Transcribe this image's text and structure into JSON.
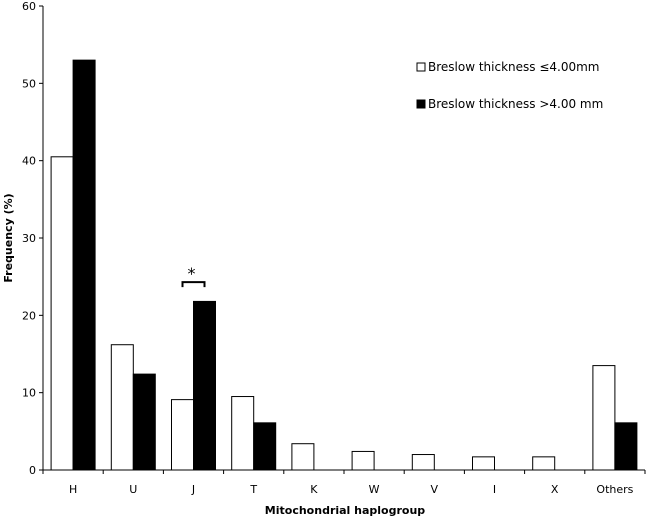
{
  "chart_data": {
    "type": "bar",
    "categories": [
      "H",
      "U",
      "J",
      "T",
      "K",
      "W",
      "V",
      "I",
      "X",
      "Others"
    ],
    "series": [
      {
        "name": "Breslow thickness ≤4.00mm",
        "fill": "#ffffff",
        "stroke": "#000000",
        "values": [
          40.5,
          16.2,
          9.1,
          9.5,
          3.4,
          2.4,
          2.0,
          1.7,
          1.7,
          13.5
        ]
      },
      {
        "name": "Breslow thickness >4.00 mm",
        "fill": "#000000",
        "stroke": "#000000",
        "values": [
          53.0,
          12.4,
          21.8,
          6.1,
          0,
          0,
          0,
          0,
          0,
          6.1
        ]
      }
    ],
    "title": "",
    "xlabel": "Mitochondrial haplogroup",
    "ylabel": "Frequency (%)",
    "ylim": [
      0,
      60
    ],
    "yticks": [
      "0",
      "10",
      "20",
      "30",
      "40",
      "50",
      "60"
    ],
    "grid": false,
    "legend_position": "top-right",
    "annotations": [
      {
        "text": "*",
        "category": "J"
      }
    ]
  }
}
